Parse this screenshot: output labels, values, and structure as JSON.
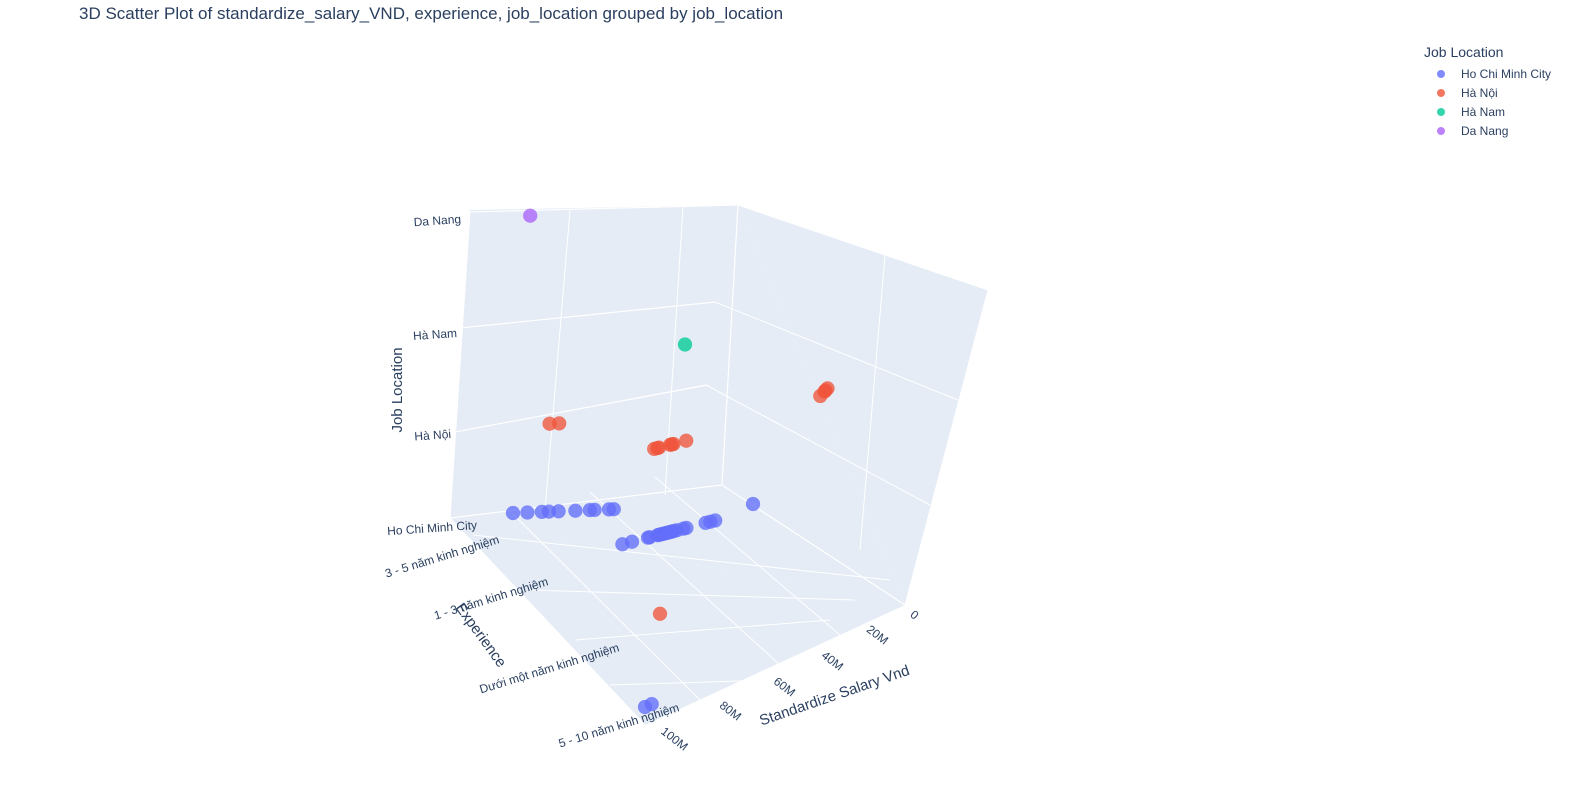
{
  "chart_data": {
    "type": "scatter",
    "projection": "3d",
    "title": "3D Scatter Plot of standardize_salary_VND, experience, job_location grouped by job_location",
    "legend": {
      "title": "Job Location",
      "placement": "top-right"
    },
    "axes": {
      "x": {
        "label": "Standardize Salary Vnd",
        "ticks": [
          "0",
          "20M",
          "40M",
          "60M",
          "80M",
          "100M"
        ],
        "tick_values": [
          0,
          20000000,
          40000000,
          60000000,
          80000000,
          100000000
        ],
        "range": [
          0,
          110000000
        ]
      },
      "y": {
        "label": "Experience",
        "categories": [
          "3 - 5 năm kinh nghiệm",
          "1 - 3 năm kinh nghiệm",
          "Dưới một năm kinh nghiệm",
          "5 - 10 năm kinh nghiệm"
        ]
      },
      "z": {
        "label": "Job Location",
        "categories": [
          "Ho Chi Minh City",
          "Hà Nội",
          "Hà Nam",
          "Da Nang"
        ]
      }
    },
    "grid": true,
    "series": [
      {
        "name": "Ho Chi Minh City",
        "color": "#636efa",
        "points": [
          {
            "x": 0,
            "y": "3 - 5 năm kinh nghiệm"
          },
          {
            "x": 6000000,
            "y": "3 - 5 năm kinh nghiệm"
          },
          {
            "x": 12000000,
            "y": "3 - 5 năm kinh nghiệm"
          },
          {
            "x": 15000000,
            "y": "3 - 5 năm kinh nghiệm"
          },
          {
            "x": 19000000,
            "y": "3 - 5 năm kinh nghiệm"
          },
          {
            "x": 26000000,
            "y": "3 - 5 năm kinh nghiệm"
          },
          {
            "x": 32000000,
            "y": "3 - 5 năm kinh nghiệm"
          },
          {
            "x": 34000000,
            "y": "3 - 5 năm kinh nghiệm"
          },
          {
            "x": 40000000,
            "y": "3 - 5 năm kinh nghiệm"
          },
          {
            "x": 42000000,
            "y": "3 - 5 năm kinh nghiệm"
          },
          {
            "x": 100000000,
            "y": "3 - 5 năm kinh nghiệm"
          },
          {
            "x": 14000000,
            "y": "1 - 3 năm kinh nghiệm"
          },
          {
            "x": 20000000,
            "y": "1 - 3 năm kinh nghiệm"
          },
          {
            "x": 30000000,
            "y": "1 - 3 năm kinh nghiệm"
          },
          {
            "x": 31000000,
            "y": "1 - 3 năm kinh nghiệm"
          },
          {
            "x": 36000000,
            "y": "1 - 3 năm kinh nghiệm"
          },
          {
            "x": 37000000,
            "y": "1 - 3 năm kinh nghiệm"
          },
          {
            "x": 38000000,
            "y": "1 - 3 năm kinh nghiệm"
          },
          {
            "x": 39000000,
            "y": "1 - 3 năm kinh nghiệm"
          },
          {
            "x": 40000000,
            "y": "1 - 3 năm kinh nghiệm"
          },
          {
            "x": 41000000,
            "y": "1 - 3 năm kinh nghiệm"
          },
          {
            "x": 42000000,
            "y": "1 - 3 năm kinh nghiệm"
          },
          {
            "x": 43000000,
            "y": "1 - 3 năm kinh nghiệm"
          },
          {
            "x": 44000000,
            "y": "1 - 3 năm kinh nghiệm"
          },
          {
            "x": 45000000,
            "y": "1 - 3 năm kinh nghiệm"
          },
          {
            "x": 46000000,
            "y": "1 - 3 năm kinh nghiệm"
          },
          {
            "x": 48000000,
            "y": "1 - 3 năm kinh nghiệm"
          },
          {
            "x": 52000000,
            "y": "1 - 3 năm kinh nghiệm"
          },
          {
            "x": 54000000,
            "y": "1 - 3 năm kinh nghiệm"
          },
          {
            "x": 66000000,
            "y": "1 - 3 năm kinh nghiệm"
          },
          {
            "x": 69000000,
            "y": "1 - 3 năm kinh nghiệm"
          },
          {
            "x": 72000000,
            "y": "1 - 3 năm kinh nghiệm"
          },
          {
            "x": 86000000,
            "y": "5 - 10 năm kinh nghiệm"
          },
          {
            "x": 100000000,
            "y": "5 - 10 năm kinh nghiệm"
          }
        ]
      },
      {
        "name": "Hà Nội",
        "color": "#EF553B",
        "points": [
          {
            "x": 14000000,
            "y": "3 - 5 năm kinh nghiệm"
          },
          {
            "x": 18000000,
            "y": "3 - 5 năm kinh nghiệm"
          },
          {
            "x": 32000000,
            "y": "1 - 3 năm kinh nghiệm"
          },
          {
            "x": 34000000,
            "y": "1 - 3 năm kinh nghiệm"
          },
          {
            "x": 35000000,
            "y": "1 - 3 năm kinh nghiệm"
          },
          {
            "x": 42000000,
            "y": "1 - 3 năm kinh nghiệm"
          },
          {
            "x": 43000000,
            "y": "1 - 3 năm kinh nghiệm"
          },
          {
            "x": 44000000,
            "y": "1 - 3 năm kinh nghiệm"
          },
          {
            "x": 52000000,
            "y": "1 - 3 năm kinh nghiệm"
          },
          {
            "x": 78000000,
            "y": "Dưới một năm kinh nghiệm"
          },
          {
            "x": 82000000,
            "y": "Dưới một năm kinh nghiệm"
          },
          {
            "x": 83000000,
            "y": "Dưới một năm kinh nghiệm"
          },
          {
            "x": 85000000,
            "y": "Dưới một năm kinh nghiệm"
          },
          {
            "x": 75000000,
            "y": "5 - 10 năm kinh nghiệm"
          }
        ]
      },
      {
        "name": "Hà Nam",
        "color": "#00cc96",
        "points": [
          {
            "x": 50000000,
            "y": "1 - 3 năm kinh nghiệm"
          }
        ]
      },
      {
        "name": "Da Nang",
        "color": "#ab63fa",
        "points": [
          {
            "x": 3000000,
            "y": "3 - 5 năm kinh nghiệm"
          }
        ]
      }
    ]
  }
}
